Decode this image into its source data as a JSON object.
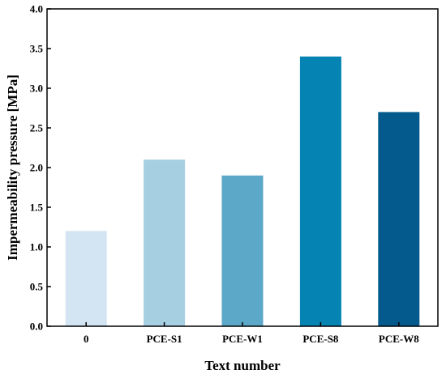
{
  "chart_data": {
    "type": "bar",
    "xlabel": "Text number",
    "ylabel": "Impermeability pressure [MPa]",
    "categories": [
      "0",
      "PCE-S1",
      "PCE-W1",
      "PCE-S8",
      "PCE-W8"
    ],
    "values": [
      1.2,
      2.1,
      1.9,
      3.4,
      2.7
    ],
    "colors": [
      "#d3e4f3",
      "#a6cfe1",
      "#5ca8c9",
      "#0583b2",
      "#045a8d"
    ],
    "ylim": [
      0,
      4.0
    ],
    "yticks": [
      "0.0",
      "0.5",
      "1.0",
      "1.5",
      "2.0",
      "2.5",
      "3.0",
      "3.5",
      "4.0"
    ],
    "grid": false,
    "legend": "none"
  }
}
